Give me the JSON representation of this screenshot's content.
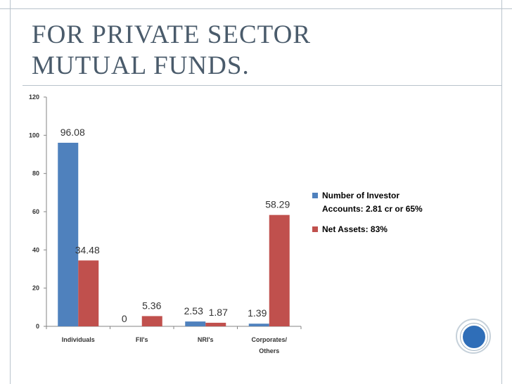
{
  "slide": {
    "title_line1": "FOR PRIVATE SECTOR",
    "title_line2": "MUTUAL FUNDS."
  },
  "chart_data": {
    "type": "bar",
    "categories": [
      "Individuals",
      "FII's",
      "NRI's",
      "Corporates/ Others"
    ],
    "category_lines": [
      [
        "Individuals"
      ],
      [
        "FII's"
      ],
      [
        "NRI's"
      ],
      [
        "Corporates/",
        "Others"
      ]
    ],
    "series": [
      {
        "name": "Number of Investor Accounts: 2.81 cr or 65%",
        "name_lines": [
          "Number of Investor",
          "Accounts: 2.81 cr or 65%"
        ],
        "values": [
          96.08,
          0,
          2.53,
          1.39
        ],
        "color": "#4f81bd",
        "labels": [
          "96.08",
          "0",
          "2.53",
          "1.39"
        ]
      },
      {
        "name": "Net Assets: 83%",
        "name_lines": [
          "Net Assets: 83%"
        ],
        "values": [
          34.48,
          5.36,
          1.87,
          58.29
        ],
        "color": "#c0504d",
        "labels": [
          "34.48",
          "5.36",
          "1.87",
          "58.29"
        ]
      }
    ],
    "ylim": [
      0,
      120
    ],
    "yticks": [
      0,
      20,
      40,
      60,
      80,
      100,
      120
    ],
    "legend_position": "right",
    "grid": false
  }
}
